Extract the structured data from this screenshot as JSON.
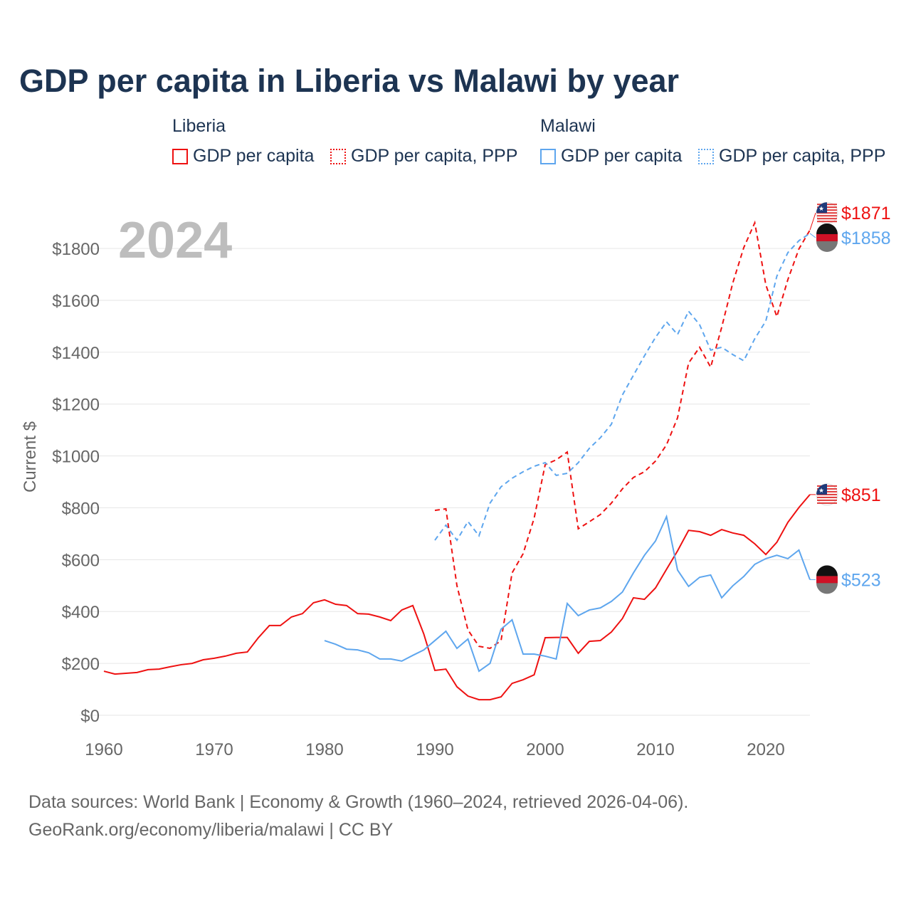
{
  "chart_data": {
    "type": "line",
    "title": "GDP per capita in Liberia vs Malawi by year",
    "ylabel": "Current $",
    "xlim": [
      1960,
      2024
    ],
    "ylim": [
      0,
      1900
    ],
    "xticks": [
      1960,
      1970,
      1980,
      1990,
      2000,
      2010,
      2020
    ],
    "yticks": [
      0,
      200,
      400,
      600,
      800,
      1000,
      1200,
      1400,
      1600,
      1800
    ],
    "ytick_labels": [
      "$0",
      "$200",
      "$400",
      "$600",
      "$800",
      "$1000",
      "$1200",
      "$1400",
      "$1600",
      "$1800"
    ],
    "year_label": "2024",
    "groups": [
      "Liberia",
      "Malawi"
    ],
    "series": [
      {
        "name": "GDP per capita",
        "country": "Liberia",
        "color": "#ee1111",
        "dash": false,
        "start": 1960,
        "values": [
          170,
          159,
          162,
          165,
          176,
          178,
          187,
          195,
          200,
          214,
          220,
          228,
          239,
          244,
          299,
          346,
          346,
          379,
          392,
          434,
          445,
          428,
          423,
          392,
          390,
          379,
          365,
          406,
          423,
          313,
          173,
          178,
          110,
          74,
          60,
          60,
          71,
          123,
          137,
          156,
          299,
          300,
          300,
          239,
          285,
          288,
          321,
          373,
          453,
          447,
          491,
          563,
          634,
          713,
          708,
          694,
          716,
          703,
          694,
          661,
          620,
          667,
          744,
          801,
          851
        ],
        "end_label": "$851"
      },
      {
        "name": "GDP per capita, PPP",
        "country": "Liberia",
        "color": "#ee1111",
        "dash": true,
        "start": 1990,
        "values": [
          790,
          796,
          500,
          329,
          266,
          258,
          288,
          549,
          623,
          760,
          966,
          985,
          1015,
          719,
          746,
          774,
          818,
          873,
          917,
          939,
          980,
          1043,
          1147,
          1358,
          1419,
          1342,
          1496,
          1666,
          1803,
          1899,
          1660,
          1537,
          1680,
          1798,
          1871
        ],
        "end_label": "$1871"
      },
      {
        "name": "GDP per capita",
        "country": "Malawi",
        "color": "#5ea6ee",
        "dash": false,
        "start": 1980,
        "values": [
          288,
          274,
          255,
          252,
          241,
          217,
          217,
          209,
          231,
          252,
          288,
          324,
          258,
          294,
          170,
          200,
          332,
          368,
          236,
          236,
          228,
          217,
          431,
          384,
          406,
          414,
          439,
          475,
          549,
          617,
          672,
          766,
          560,
          497,
          532,
          541,
          453,
          499,
          535,
          582,
          604,
          617,
          604,
          637,
          523
        ],
        "end_label": "$523"
      },
      {
        "name": "GDP per capita, PPP",
        "country": "Malawi",
        "color": "#5ea6ee",
        "dash": true,
        "start": 1990,
        "values": [
          675,
          733,
          675,
          747,
          692,
          818,
          881,
          914,
          939,
          960,
          974,
          925,
          933,
          974,
          1029,
          1070,
          1122,
          1235,
          1311,
          1386,
          1457,
          1517,
          1468,
          1558,
          1506,
          1408,
          1419,
          1391,
          1367,
          1452,
          1520,
          1693,
          1784,
          1830,
          1858
        ],
        "end_label": "$1858"
      }
    ],
    "source_line1": "Data sources: World Bank | Economy & Growth (1960–2024, retrieved 2026-04-06).",
    "source_line2": "GeoRank.org/economy/liberia/malawi | CC BY"
  }
}
